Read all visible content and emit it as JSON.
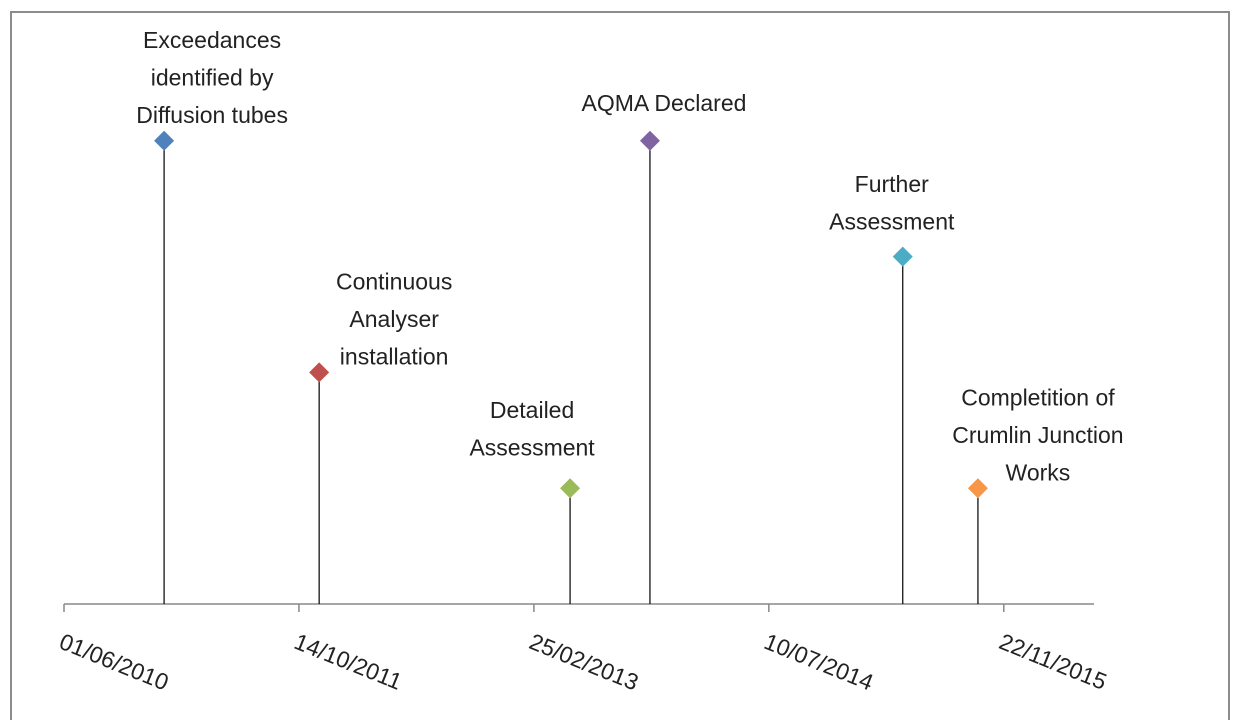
{
  "chart_data": {
    "type": "timeline",
    "labels": [
      [
        "Exceedances",
        "identified by",
        "Diffusion tubes"
      ],
      [
        "Continuous",
        "Analyser",
        "installation"
      ],
      [
        "Detailed",
        "Assessment"
      ],
      [
        "AQMA Declared"
      ],
      [
        "Further",
        "Assessment"
      ],
      [
        "Completition of",
        "Crumlin Junction",
        "Works"
      ]
    ],
    "x": [
      "2010-12-31",
      "2011-11-26",
      "2013-05-13",
      "2013-10-30",
      "2015-04-21",
      "2015-09-28"
    ],
    "values": [
      4,
      2,
      1,
      4,
      3,
      1
    ],
    "colors": [
      "#4f81bd",
      "#c0504d",
      "#9bbb59",
      "#8064a2",
      "#4bacc6",
      "#f79646"
    ],
    "xlim": [
      "2010-06-01",
      "2016-06-01"
    ],
    "xticks": [
      {
        "value": "2010-06-01",
        "label": "01/06/2010"
      },
      {
        "value": "2011-10-14",
        "label": "14/10/2011"
      },
      {
        "value": "2013-02-25",
        "label": "25/02/2013"
      },
      {
        "value": "2014-07-10",
        "label": "10/07/2014"
      },
      {
        "value": "2015-11-22",
        "label": "22/11/2015"
      }
    ],
    "ylim": [
      0,
      5
    ]
  }
}
